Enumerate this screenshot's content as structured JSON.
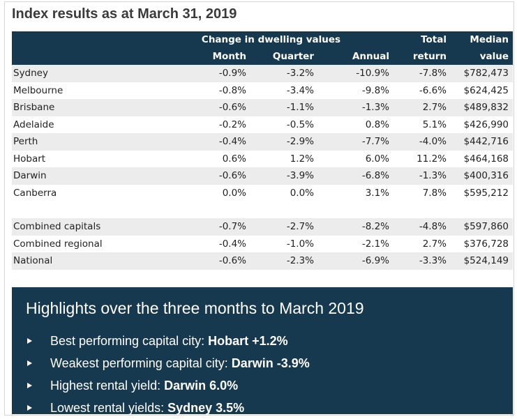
{
  "title": "Index results as at March 31, 2019",
  "table": {
    "group_header": "Change in dwelling values",
    "total_return_line1": "Total",
    "total_return_line2": "return",
    "median_line1": "Median",
    "median_line2": "value",
    "col_month": "Month",
    "col_quarter": "Quarter",
    "col_annual": "Annual",
    "rows": [
      {
        "city": "Sydney",
        "month": "-0.9%",
        "quarter": "-3.2%",
        "annual": "-10.9%",
        "total": "-7.8%",
        "median": "$782,473"
      },
      {
        "city": "Melbourne",
        "month": "-0.8%",
        "quarter": "-3.4%",
        "annual": "-9.8%",
        "total": "-6.6%",
        "median": "$624,425"
      },
      {
        "city": "Brisbane",
        "month": "-0.6%",
        "quarter": "-1.1%",
        "annual": "-1.3%",
        "total": "2.7%",
        "median": "$489,832"
      },
      {
        "city": "Adelaide",
        "month": "-0.2%",
        "quarter": "-0.5%",
        "annual": "0.8%",
        "total": "5.1%",
        "median": "$426,990"
      },
      {
        "city": "Perth",
        "month": "-0.4%",
        "quarter": "-2.9%",
        "annual": "-7.7%",
        "total": "-4.0%",
        "median": "$442,716"
      },
      {
        "city": "Hobart",
        "month": "0.6%",
        "quarter": "1.2%",
        "annual": "6.0%",
        "total": "11.2%",
        "median": "$464,168"
      },
      {
        "city": "Darwin",
        "month": "-0.6%",
        "quarter": "-3.9%",
        "annual": "-6.8%",
        "total": "-1.3%",
        "median": "$400,316"
      },
      {
        "city": "Canberra",
        "month": "0.0%",
        "quarter": "0.0%",
        "annual": "3.1%",
        "total": "7.8%",
        "median": "$595,212"
      }
    ],
    "summary_rows": [
      {
        "city": "Combined capitals",
        "month": "-0.7%",
        "quarter": "-2.7%",
        "annual": "-8.2%",
        "total": "-4.8%",
        "median": "$597,860"
      },
      {
        "city": "Combined regional",
        "month": "-0.4%",
        "quarter": "-1.0%",
        "annual": "-2.1%",
        "total": "2.7%",
        "median": "$376,728"
      },
      {
        "city": "National",
        "month": "-0.6%",
        "quarter": "-2.3%",
        "annual": "-6.9%",
        "total": "-3.3%",
        "median": "$524,149"
      }
    ]
  },
  "highlights": {
    "title": "Highlights over the three months to March 2019",
    "items": [
      {
        "label": "Best performing capital city:",
        "value": "Hobart +1.2%"
      },
      {
        "label": "Weakest performing capital city:",
        "value": "Darwin -3.9%"
      },
      {
        "label": "Highest rental yield:",
        "value": "Darwin 6.0%"
      },
      {
        "label": "Lowest rental yields:",
        "value": "Sydney 3.5%"
      }
    ]
  },
  "colors": {
    "header_bg": "#17394f",
    "row_shade": "#ececec"
  }
}
